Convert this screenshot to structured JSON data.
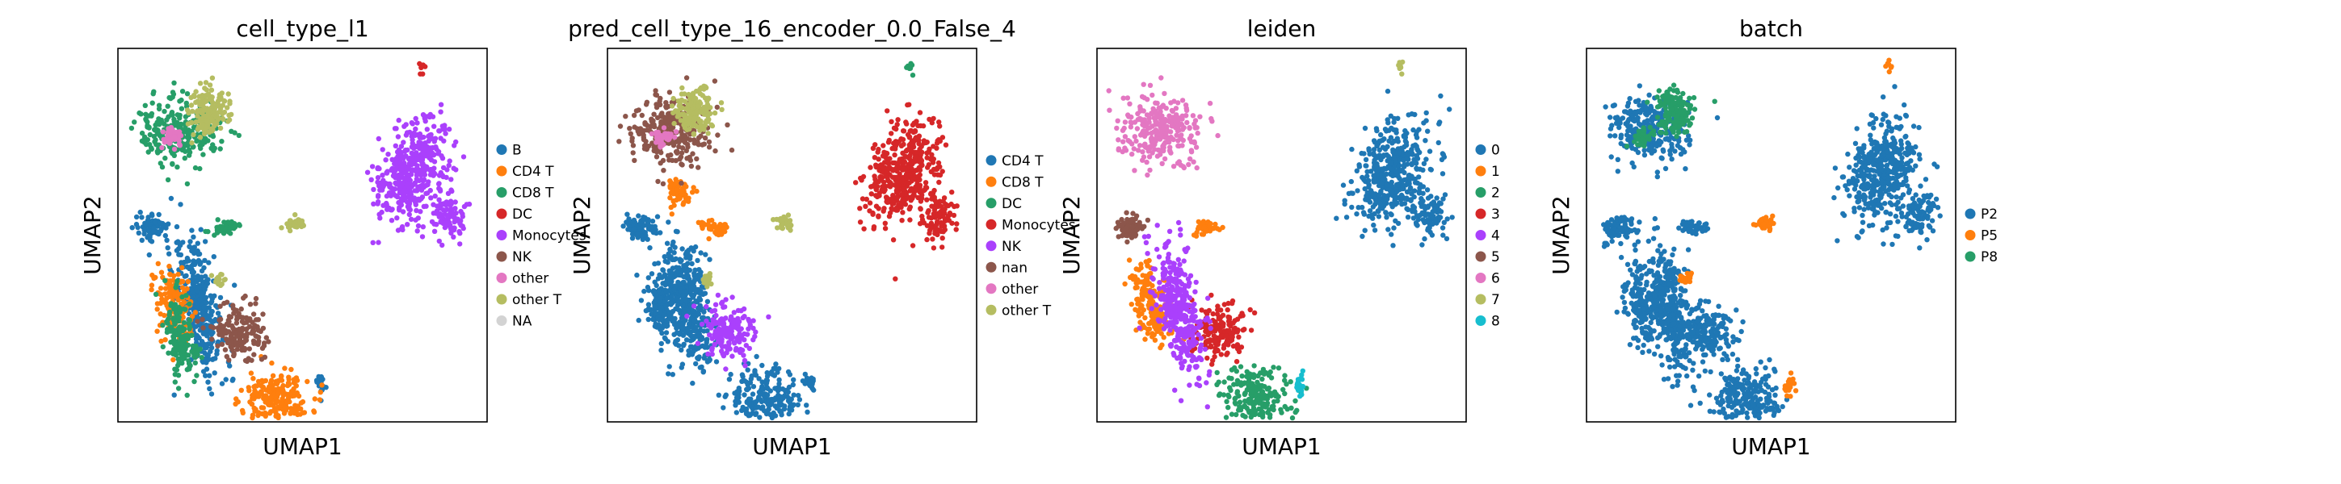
{
  "figure": {
    "xlabel": "UMAP1",
    "ylabel": "UMAP2"
  },
  "chart_data": [
    {
      "type": "scatter",
      "title": "cell_type_l1",
      "xlabel": "UMAP1",
      "ylabel": "UMAP2",
      "legend_position": "right",
      "legend": [
        {
          "label": "B",
          "color": "#1f77b4"
        },
        {
          "label": "CD4 T",
          "color": "#ff7f0e"
        },
        {
          "label": "CD8 T",
          "color": "#279e68"
        },
        {
          "label": "DC",
          "color": "#d62728"
        },
        {
          "label": "Monocytes",
          "color": "#aa40fc"
        },
        {
          "label": "NK",
          "color": "#8c564b"
        },
        {
          "label": "other",
          "color": "#e377c2"
        },
        {
          "label": "other T",
          "color": "#b5bd61"
        },
        {
          "label": "NA",
          "color": "#d3d3d3"
        }
      ],
      "clusters": [
        {
          "category": "B",
          "points": [
            [
              0.22,
              0.31
            ],
            [
              0.09,
              0.52
            ],
            [
              0.55,
              0.1
            ]
          ]
        },
        {
          "category": "CD4 T",
          "points": [
            [
              0.43,
              0.06
            ],
            [
              0.15,
              0.31
            ]
          ]
        },
        {
          "category": "CD8 T",
          "points": [
            [
              0.17,
              0.22
            ],
            [
              0.29,
              0.52
            ],
            [
              0.17,
              0.78
            ]
          ]
        },
        {
          "category": "DC",
          "points": [
            [
              0.82,
              0.95
            ]
          ]
        },
        {
          "category": "Monocytes",
          "points": [
            [
              0.8,
              0.67
            ],
            [
              0.9,
              0.55
            ]
          ]
        },
        {
          "category": "NK",
          "points": [
            [
              0.33,
              0.24
            ]
          ]
        },
        {
          "category": "other",
          "points": [
            [
              0.15,
              0.76
            ]
          ]
        },
        {
          "category": "other T",
          "points": [
            [
              0.24,
              0.83
            ],
            [
              0.48,
              0.53
            ],
            [
              0.27,
              0.38
            ]
          ]
        }
      ]
    },
    {
      "type": "scatter",
      "title": "pred_cell_type_16_encoder_0.0_False_4",
      "xlabel": "UMAP1",
      "ylabel": "UMAP2",
      "legend_position": "right",
      "legend": [
        {
          "label": "CD4 T",
          "color": "#1f77b4"
        },
        {
          "label": "CD8 T",
          "color": "#ff7f0e"
        },
        {
          "label": "DC",
          "color": "#279e68"
        },
        {
          "label": "Monocytes",
          "color": "#d62728"
        },
        {
          "label": "NK",
          "color": "#aa40fc"
        },
        {
          "label": "nan",
          "color": "#8c564b"
        },
        {
          "label": "other",
          "color": "#e377c2"
        },
        {
          "label": "other T",
          "color": "#b5bd61"
        }
      ],
      "clusters": [
        {
          "category": "CD4 T",
          "points": [
            [
              0.22,
              0.31
            ],
            [
              0.09,
              0.52
            ],
            [
              0.55,
              0.1
            ],
            [
              0.43,
              0.06
            ],
            [
              0.15,
              0.31
            ]
          ]
        },
        {
          "category": "CD8 T",
          "points": [
            [
              0.29,
              0.52
            ],
            [
              0.19,
              0.62
            ]
          ]
        },
        {
          "category": "DC",
          "points": [
            [
              0.82,
              0.95
            ]
          ]
        },
        {
          "category": "Monocytes",
          "points": [
            [
              0.8,
              0.67
            ],
            [
              0.9,
              0.55
            ]
          ]
        },
        {
          "category": "NK",
          "points": [
            [
              0.33,
              0.24
            ]
          ]
        },
        {
          "category": "nan",
          "points": [
            [
              0.17,
              0.78
            ]
          ]
        },
        {
          "category": "other",
          "points": [
            [
              0.15,
              0.76
            ]
          ]
        },
        {
          "category": "other T",
          "points": [
            [
              0.24,
              0.83
            ],
            [
              0.48,
              0.53
            ],
            [
              0.27,
              0.38
            ]
          ]
        }
      ]
    },
    {
      "type": "scatter",
      "title": "leiden",
      "xlabel": "UMAP1",
      "ylabel": "UMAP2",
      "legend_position": "right",
      "legend": [
        {
          "label": "0",
          "color": "#1f77b4"
        },
        {
          "label": "1",
          "color": "#ff7f0e"
        },
        {
          "label": "2",
          "color": "#279e68"
        },
        {
          "label": "3",
          "color": "#d62728"
        },
        {
          "label": "4",
          "color": "#aa40fc"
        },
        {
          "label": "5",
          "color": "#8c564b"
        },
        {
          "label": "6",
          "color": "#e377c2"
        },
        {
          "label": "7",
          "color": "#b5bd61"
        },
        {
          "label": "8",
          "color": "#17becf"
        }
      ],
      "clusters": [
        {
          "category": "0",
          "points": [
            [
              0.8,
              0.67
            ],
            [
              0.9,
              0.55
            ]
          ]
        },
        {
          "category": "1",
          "points": [
            [
              0.29,
              0.52
            ],
            [
              0.15,
              0.31
            ]
          ]
        },
        {
          "category": "2",
          "points": [
            [
              0.43,
              0.06
            ]
          ]
        },
        {
          "category": "3",
          "points": [
            [
              0.33,
              0.24
            ]
          ]
        },
        {
          "category": "4",
          "points": [
            [
              0.22,
              0.31
            ]
          ]
        },
        {
          "category": "5",
          "points": [
            [
              0.09,
              0.52
            ]
          ]
        },
        {
          "category": "6",
          "points": [
            [
              0.17,
              0.78
            ]
          ]
        },
        {
          "category": "7",
          "points": [
            [
              0.82,
              0.95
            ]
          ]
        },
        {
          "category": "8",
          "points": [
            [
              0.55,
              0.1
            ]
          ]
        }
      ]
    },
    {
      "type": "scatter",
      "title": "batch",
      "xlabel": "UMAP1",
      "ylabel": "UMAP2",
      "legend_position": "right",
      "legend": [
        {
          "label": "P2",
          "color": "#1f77b4"
        },
        {
          "label": "P5",
          "color": "#ff7f0e"
        },
        {
          "label": "P8",
          "color": "#279e68"
        }
      ],
      "clusters": [
        {
          "category": "P2",
          "points": [
            [
              0.22,
              0.31
            ],
            [
              0.09,
              0.52
            ],
            [
              0.43,
              0.06
            ],
            [
              0.8,
              0.67
            ],
            [
              0.33,
              0.24
            ],
            [
              0.17,
              0.78
            ],
            [
              0.29,
              0.52
            ],
            [
              0.9,
              0.55
            ],
            [
              0.15,
              0.31
            ]
          ]
        },
        {
          "category": "P5",
          "points": [
            [
              0.82,
              0.95
            ],
            [
              0.27,
              0.38
            ],
            [
              0.55,
              0.1
            ],
            [
              0.48,
              0.53
            ]
          ]
        },
        {
          "category": "P8",
          "points": [
            [
              0.24,
              0.83
            ],
            [
              0.15,
              0.76
            ]
          ]
        }
      ]
    }
  ]
}
